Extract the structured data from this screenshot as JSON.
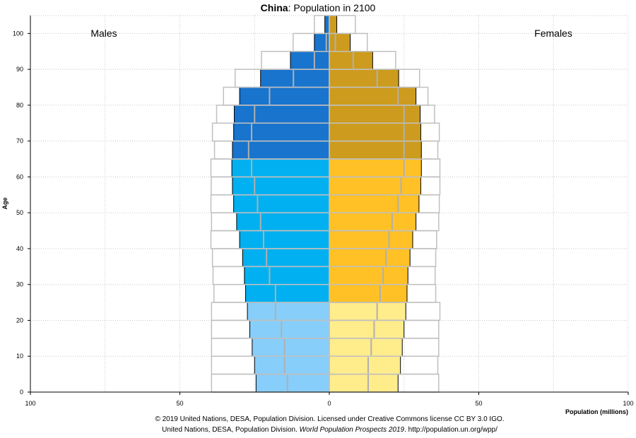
{
  "title": {
    "country": "China",
    "rest": ": Population in 2100"
  },
  "credits": {
    "line1": "© 2019 United Nations, DESA, Population Division. Licensed under Creative Commons license CC BY 3.0 IGO.",
    "line2_a": "United Nations, DESA, Population Division. ",
    "line2_b": "World Population Prospects 2019",
    "line2_c": ". http://population.un.org/wpp/"
  },
  "colors": {
    "male_0_24": "#87cefa",
    "male_25_64": "#00b0f0",
    "male_65_plus": "#1874cd",
    "female_0_24": "#ffec8b",
    "female_25_64": "#ffc125",
    "female_65_plus": "#cd9b1d",
    "outline": "#c0c0c0",
    "median_line": "#b0b0b0"
  },
  "chart_data": {
    "type": "bar",
    "orientation": "horizontal-pyramid",
    "title": "China: Population in 2100",
    "xlabel": "Population (millions)",
    "ylabel": "Age",
    "xlim": [
      -100,
      100
    ],
    "x_ticks": [
      -100,
      -50,
      0,
      50,
      100
    ],
    "x_tick_labels": [
      "100",
      "50",
      "0",
      "50",
      "100"
    ],
    "y_ticks": [
      0,
      10,
      20,
      30,
      40,
      50,
      60,
      70,
      80,
      90,
      100
    ],
    "ylim": [
      0,
      105
    ],
    "grid": true,
    "side_labels": {
      "left": "Males",
      "right": "Females"
    },
    "age_groups": [
      "0-4",
      "5-9",
      "10-14",
      "15-19",
      "20-24",
      "25-29",
      "30-34",
      "35-39",
      "40-44",
      "45-49",
      "50-54",
      "55-59",
      "60-64",
      "65-69",
      "70-74",
      "75-79",
      "80-84",
      "85-89",
      "90-94",
      "95-99",
      "100+"
    ],
    "series": [
      {
        "name": "Males",
        "values": [
          24.5,
          25.0,
          25.8,
          26.6,
          27.4,
          28.0,
          28.4,
          29.0,
          30.0,
          31.0,
          32.0,
          32.4,
          32.6,
          32.4,
          32.0,
          31.8,
          30.0,
          23.0,
          13.0,
          5.0,
          1.5
        ]
      },
      {
        "name": "Females",
        "values": [
          23.0,
          23.8,
          24.4,
          25.0,
          25.6,
          26.0,
          26.3,
          27.0,
          27.9,
          29.0,
          30.0,
          30.6,
          30.8,
          30.8,
          30.6,
          30.4,
          29.0,
          23.2,
          14.5,
          7.0,
          2.5
        ]
      },
      {
        "name": "Males 2019",
        "values": [
          39.4,
          39.4,
          39.4,
          39.4,
          39.4,
          38.6,
          38.9,
          39.1,
          39.6,
          39.4,
          39.6,
          39.5,
          39.6,
          38.4,
          39.1,
          37.7,
          35.4,
          31.5,
          22.7,
          12.1,
          5.0
        ]
      },
      {
        "name": "Females 2019",
        "values": [
          36.6,
          36.3,
          36.6,
          36.6,
          37.0,
          35.6,
          35.4,
          35.6,
          35.9,
          36.6,
          36.8,
          37.0,
          37.0,
          36.3,
          36.8,
          35.2,
          33.0,
          30.2,
          22.2,
          12.7,
          8.7
        ]
      },
      {
        "name": "Males median",
        "values": [
          14,
          15,
          15,
          16,
          18,
          18,
          20,
          21,
          22,
          23,
          24,
          25,
          26,
          27,
          26,
          25,
          20,
          12,
          5,
          1,
          0
        ]
      },
      {
        "name": "Females median",
        "values": [
          13,
          13,
          14,
          15,
          16,
          17,
          18,
          19,
          20,
          21,
          23,
          24,
          25,
          25,
          25,
          25,
          23,
          16,
          8,
          2,
          0
        ]
      }
    ]
  }
}
